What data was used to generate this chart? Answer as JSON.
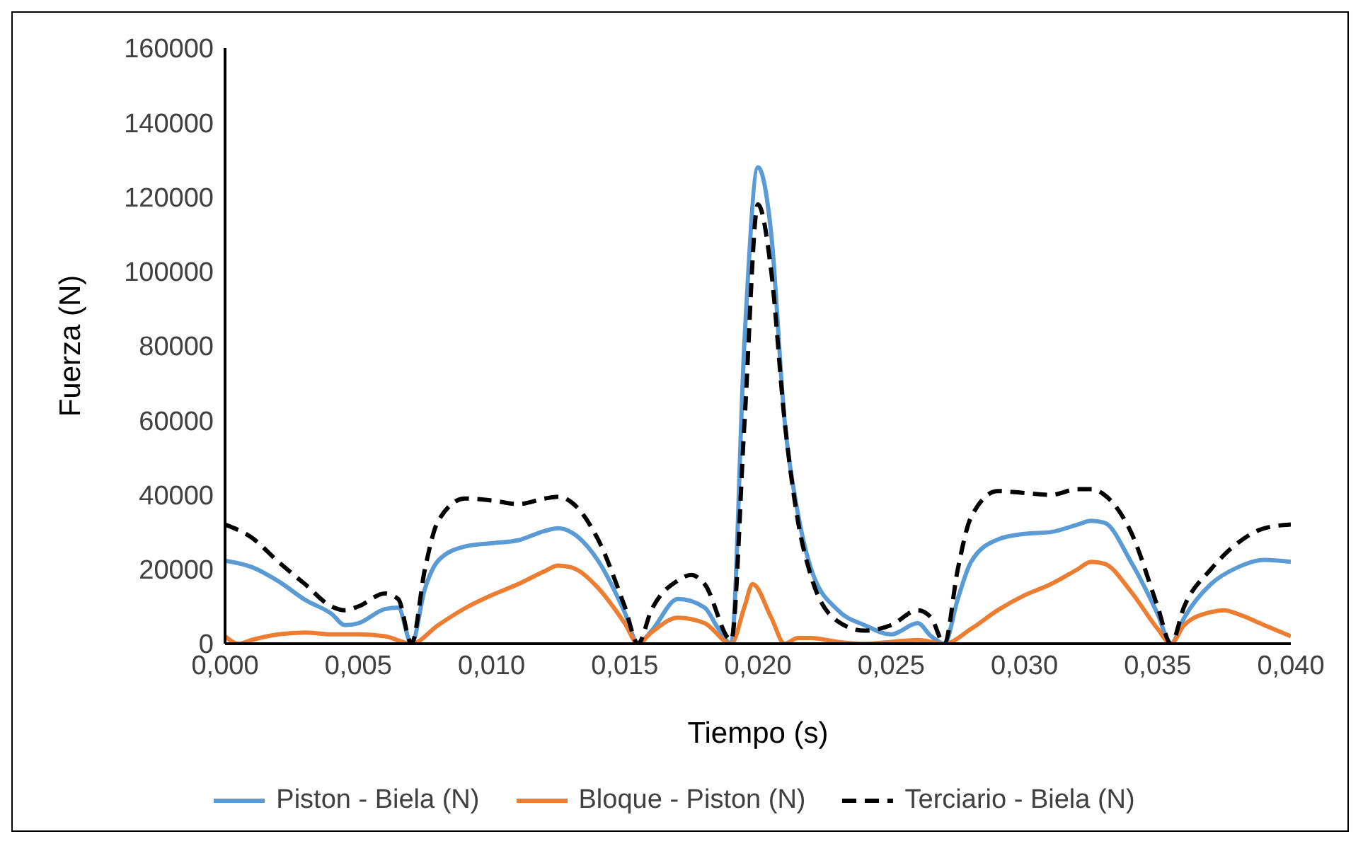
{
  "chart_data": {
    "type": "line",
    "xlabel": "Tiempo (s)",
    "ylabel": "Fuerza (N)",
    "xlim": [
      0,
      0.04
    ],
    "xticks": [
      {
        "value": 0,
        "label": "0,000"
      },
      {
        "value": 0.005,
        "label": "0,005"
      },
      {
        "value": 0.01,
        "label": "0,010"
      },
      {
        "value": 0.015,
        "label": "0,015"
      },
      {
        "value": 0.02,
        "label": "0,020"
      },
      {
        "value": 0.025,
        "label": "0,025"
      },
      {
        "value": 0.03,
        "label": "0,030"
      },
      {
        "value": 0.035,
        "label": "0,035"
      },
      {
        "value": 0.04,
        "label": "0,040"
      }
    ],
    "ylim": [
      0,
      160000
    ],
    "yticks": [
      0,
      20000,
      40000,
      60000,
      80000,
      100000,
      120000,
      140000,
      160000
    ],
    "grid": false,
    "legend": "bottom",
    "marker": "none",
    "series": [
      {
        "name": "Piston - Biela (N)",
        "color": "#5b9bd5",
        "line_style": "solid",
        "x": [
          0,
          0.001,
          0.002,
          0.003,
          0.004,
          0.0045,
          0.005,
          0.006,
          0.0065,
          0.007,
          0.0075,
          0.008,
          0.009,
          0.01,
          0.011,
          0.012,
          0.0125,
          0.013,
          0.014,
          0.015,
          0.0155,
          0.016,
          0.017,
          0.018,
          0.0185,
          0.019,
          0.0195,
          0.02,
          0.0205,
          0.021,
          0.0215,
          0.022,
          0.023,
          0.024,
          0.025,
          0.026,
          0.0265,
          0.027,
          0.0275,
          0.028,
          0.029,
          0.03,
          0.031,
          0.032,
          0.0325,
          0.033,
          0.034,
          0.035,
          0.0355,
          0.036,
          0.037,
          0.038,
          0.039,
          0.04
        ],
        "values": [
          22300,
          20600,
          16800,
          11800,
          8000,
          5000,
          5500,
          9300,
          9700,
          0,
          14700,
          22300,
          26100,
          27000,
          27800,
          30300,
          31000,
          29900,
          22300,
          8400,
          0,
          3400,
          12000,
          9700,
          4200,
          0,
          82000,
          128000,
          110000,
          60000,
          35000,
          20000,
          9000,
          5000,
          2500,
          5500,
          2000,
          0,
          12000,
          22000,
          28000,
          29500,
          30000,
          32000,
          33000,
          32500,
          22000,
          8000,
          0,
          7000,
          16000,
          20500,
          22500,
          22000
        ]
      },
      {
        "name": "Bloque - Piston (N)",
        "color": "#ed7d31",
        "line_style": "solid",
        "x": [
          0,
          0.0005,
          0.001,
          0.002,
          0.003,
          0.004,
          0.005,
          0.006,
          0.007,
          0.008,
          0.009,
          0.01,
          0.011,
          0.012,
          0.0125,
          0.013,
          0.014,
          0.015,
          0.0155,
          0.016,
          0.017,
          0.018,
          0.019,
          0.0195,
          0.0198,
          0.0205,
          0.021,
          0.0215,
          0.022,
          0.023,
          0.024,
          0.025,
          0.026,
          0.027,
          0.028,
          0.029,
          0.03,
          0.031,
          0.032,
          0.0325,
          0.033,
          0.034,
          0.035,
          0.0355,
          0.036,
          0.037,
          0.0375,
          0.038,
          0.039,
          0.04
        ],
        "values": [
          2000,
          0,
          1000,
          2500,
          3000,
          2500,
          2500,
          2000,
          0,
          5000,
          9500,
          13000,
          16000,
          19500,
          21000,
          20500,
          15000,
          5500,
          0,
          3000,
          7000,
          5500,
          0,
          10000,
          16000,
          7000,
          0,
          1500,
          1500,
          500,
          0,
          500,
          1000,
          0,
          4000,
          9000,
          13000,
          16000,
          20000,
          22000,
          21500,
          14000,
          4000,
          0,
          5000,
          8500,
          9000,
          8000,
          5000,
          2000
        ]
      },
      {
        "name": "Terciario - Biela (N)",
        "color": "#000000",
        "line_style": "dashed",
        "x": [
          0,
          0.001,
          0.002,
          0.003,
          0.004,
          0.0045,
          0.005,
          0.006,
          0.0065,
          0.007,
          0.0075,
          0.008,
          0.009,
          0.01,
          0.011,
          0.012,
          0.0125,
          0.013,
          0.014,
          0.015,
          0.0155,
          0.016,
          0.017,
          0.0175,
          0.018,
          0.019,
          0.0195,
          0.02,
          0.0205,
          0.021,
          0.0215,
          0.022,
          0.023,
          0.024,
          0.025,
          0.026,
          0.0265,
          0.027,
          0.0275,
          0.028,
          0.029,
          0.03,
          0.031,
          0.032,
          0.0325,
          0.033,
          0.034,
          0.035,
          0.0355,
          0.036,
          0.037,
          0.038,
          0.039,
          0.04
        ],
        "values": [
          32000,
          28500,
          22000,
          16000,
          10000,
          9000,
          10000,
          13500,
          12000,
          0,
          20000,
          33000,
          39000,
          38500,
          37500,
          39000,
          39500,
          38000,
          28000,
          10000,
          0,
          9000,
          17000,
          18500,
          16000,
          1000,
          60000,
          118000,
          100000,
          60000,
          33000,
          18000,
          6000,
          3500,
          5000,
          9000,
          7000,
          0,
          20000,
          34000,
          41000,
          40500,
          40000,
          41500,
          41500,
          40000,
          30000,
          10000,
          0,
          10000,
          20000,
          27000,
          31000,
          32000
        ]
      }
    ]
  }
}
